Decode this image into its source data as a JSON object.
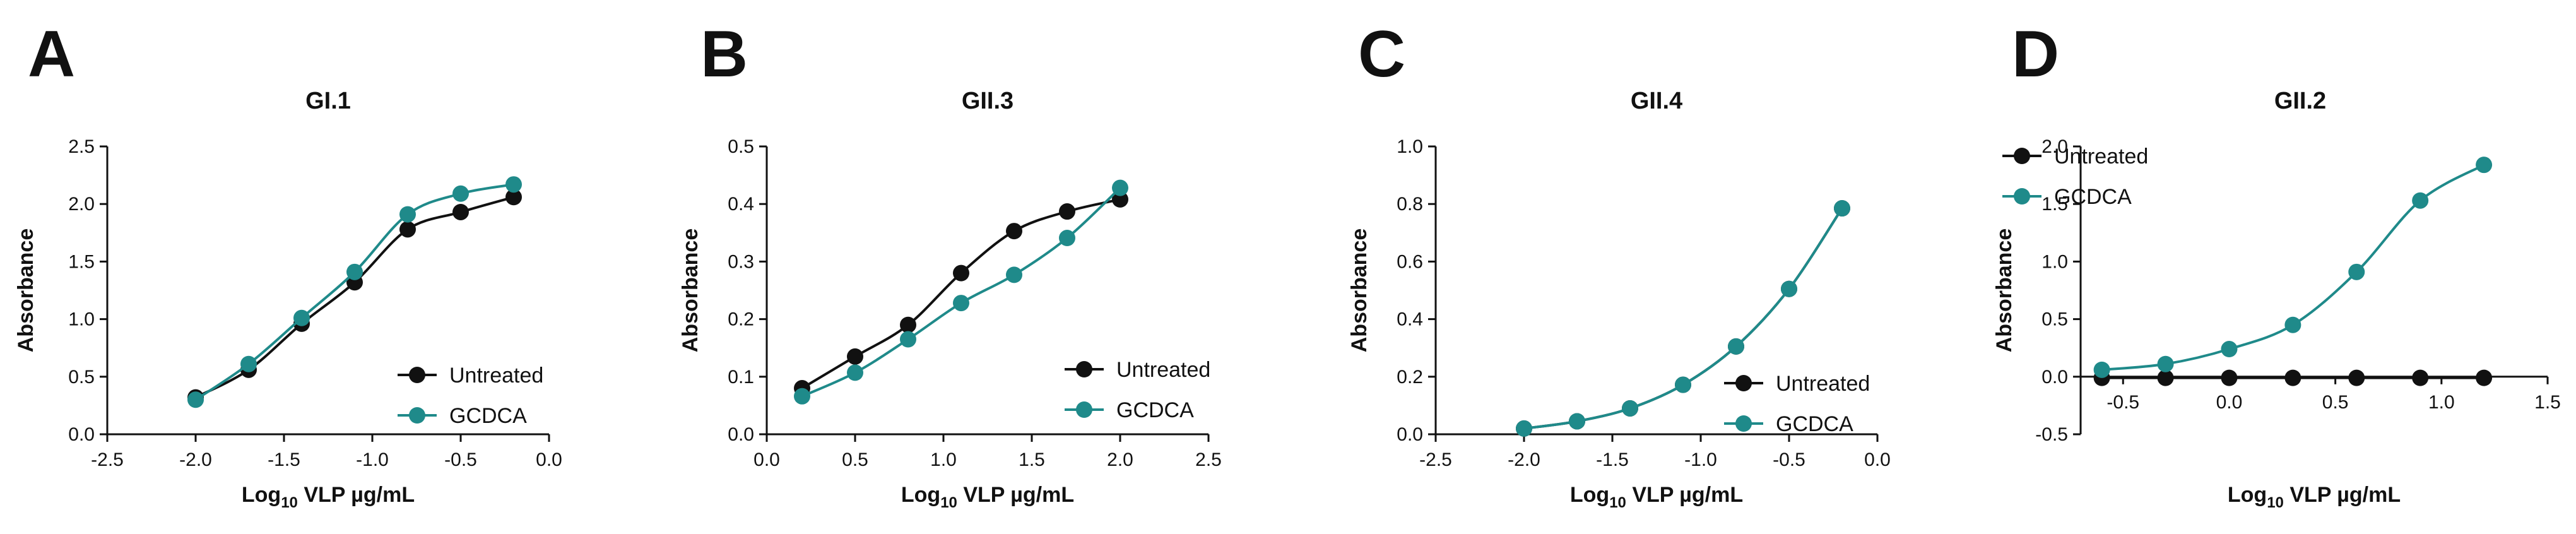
{
  "colors": {
    "untreated": "#111111",
    "gcdca": "#1f8a8a",
    "axis": "#111111"
  },
  "chart_data": [
    {
      "type": "line",
      "panel": "A",
      "title": "GI.1",
      "xlabel": "Log10 VLP µg/mL",
      "xlabel_base": "Log",
      "xlabel_sub": "10",
      "xlabel_rest": " VLP µg/mL",
      "ylabel": "Absorbance",
      "xlim": [
        -2.5,
        0.0
      ],
      "ylim": [
        0.0,
        2.5
      ],
      "xticks": [
        -2.5,
        -2.0,
        -1.5,
        -1.0,
        -0.5,
        0.0
      ],
      "xtick_labels": [
        "-2.5",
        "-2.0",
        "-1.5",
        "-1.0",
        "-0.5",
        "0.0"
      ],
      "yticks": [
        0.0,
        0.5,
        1.0,
        1.5,
        2.0,
        2.5
      ],
      "ytick_labels": [
        "0.0",
        "0.5",
        "1.0",
        "1.5",
        "2.0",
        "2.5"
      ],
      "legend_position": "bottom-right",
      "series": [
        {
          "name": "Untreated",
          "color_key": "untreated",
          "x": [
            -2.0,
            -1.7,
            -1.4,
            -1.1,
            -0.8,
            -0.5,
            -0.2
          ],
          "y": [
            0.32,
            0.56,
            0.96,
            1.32,
            1.78,
            1.93,
            2.06
          ]
        },
        {
          "name": "GCDCA",
          "color_key": "gcdca",
          "x": [
            -2.0,
            -1.7,
            -1.4,
            -1.1,
            -0.8,
            -0.5,
            -0.2
          ],
          "y": [
            0.3,
            0.61,
            1.01,
            1.41,
            1.91,
            2.09,
            2.17
          ]
        }
      ]
    },
    {
      "type": "line",
      "panel": "B",
      "title": "GII.3",
      "xlabel": "Log10 VLP µg/mL",
      "xlabel_base": "Log",
      "xlabel_sub": "10",
      "xlabel_rest": " VLP µg/mL",
      "ylabel": "Absorbance",
      "xlim": [
        0.0,
        2.5
      ],
      "ylim": [
        0.0,
        0.5
      ],
      "xticks": [
        0.0,
        0.5,
        1.0,
        1.5,
        2.0,
        2.5
      ],
      "xtick_labels": [
        "0.0",
        "0.5",
        "1.0",
        "1.5",
        "2.0",
        "2.5"
      ],
      "yticks": [
        0.0,
        0.1,
        0.2,
        0.3,
        0.4,
        0.5
      ],
      "ytick_labels": [
        "0.0",
        "0.1",
        "0.2",
        "0.3",
        "0.4",
        "0.5"
      ],
      "legend_position": "bottom-right",
      "series": [
        {
          "name": "Untreated",
          "color_key": "untreated",
          "x": [
            0.2,
            0.5,
            0.8,
            1.1,
            1.4,
            1.7,
            2.0
          ],
          "y": [
            0.08,
            0.135,
            0.19,
            0.28,
            0.353,
            0.387,
            0.408
          ]
        },
        {
          "name": "GCDCA",
          "color_key": "gcdca",
          "x": [
            0.2,
            0.5,
            0.8,
            1.1,
            1.4,
            1.7,
            2.0
          ],
          "y": [
            0.066,
            0.107,
            0.165,
            0.228,
            0.277,
            0.341,
            0.428
          ]
        }
      ]
    },
    {
      "type": "line",
      "panel": "C",
      "title": "GII.4",
      "xlabel": "Log10 VLP µg/mL",
      "xlabel_base": "Log",
      "xlabel_sub": "10",
      "xlabel_rest": " VLP µg/mL",
      "ylabel": "Absorbance",
      "xlim": [
        -2.5,
        0.0
      ],
      "ylim": [
        0.0,
        1.0
      ],
      "xticks": [
        -2.5,
        -2.0,
        -1.5,
        -1.0,
        -0.5,
        0.0
      ],
      "xtick_labels": [
        "-2.5",
        "-2.0",
        "-1.5",
        "-1.0",
        "-0.5",
        "0.0"
      ],
      "yticks": [
        0.0,
        0.2,
        0.4,
        0.6,
        0.8,
        1.0
      ],
      "ytick_labels": [
        "0.0",
        "0.2",
        "0.4",
        "0.6",
        "0.8",
        "1.0"
      ],
      "legend_position": "bottom-right",
      "series": [
        {
          "name": "Untreated",
          "color_key": "untreated",
          "x": [
            -2.0,
            -1.7,
            -1.4,
            -1.1,
            -0.8,
            -0.5,
            -0.2
          ],
          "y": [
            0.02,
            0.045,
            0.09,
            0.172,
            0.305,
            0.505,
            0.785
          ]
        },
        {
          "name": "GCDCA",
          "color_key": "gcdca",
          "x": [
            -2.0,
            -1.7,
            -1.4,
            -1.1,
            -0.8,
            -0.5,
            -0.2
          ],
          "y": [
            0.02,
            0.045,
            0.09,
            0.172,
            0.305,
            0.505,
            0.785
          ]
        }
      ]
    },
    {
      "type": "line",
      "panel": "D",
      "title": "GII.2",
      "xlabel": "Log10 VLP µg/mL",
      "xlabel_base": "Log",
      "xlabel_sub": "10",
      "xlabel_rest": " VLP µg/mL",
      "ylabel": "Absorbance",
      "xlim": [
        -0.7,
        1.5
      ],
      "ylim": [
        -0.5,
        2.0
      ],
      "xticks": [
        -0.5,
        0.0,
        0.5,
        1.0,
        1.5
      ],
      "xtick_labels": [
        "-0.5",
        "0.0",
        "0.5",
        "1.0",
        "1.5"
      ],
      "yticks": [
        -0.5,
        0.0,
        0.5,
        1.0,
        1.5,
        2.0
      ],
      "ytick_labels": [
        "-0.5",
        "0.0",
        "0.5",
        "1.0",
        "1.5",
        "2.0"
      ],
      "legend_position": "top-left",
      "series": [
        {
          "name": "Untreated",
          "color_key": "untreated",
          "x": [
            -0.6,
            -0.3,
            0.0,
            0.3,
            0.6,
            0.9,
            1.2
          ],
          "y": [
            -0.01,
            -0.01,
            -0.01,
            -0.01,
            -0.01,
            -0.01,
            -0.01
          ]
        },
        {
          "name": "GCDCA",
          "color_key": "gcdca",
          "x": [
            -0.6,
            -0.3,
            0.0,
            0.3,
            0.6,
            0.9,
            1.2
          ],
          "y": [
            0.06,
            0.11,
            0.24,
            0.45,
            0.91,
            1.53,
            1.84
          ]
        }
      ]
    }
  ]
}
